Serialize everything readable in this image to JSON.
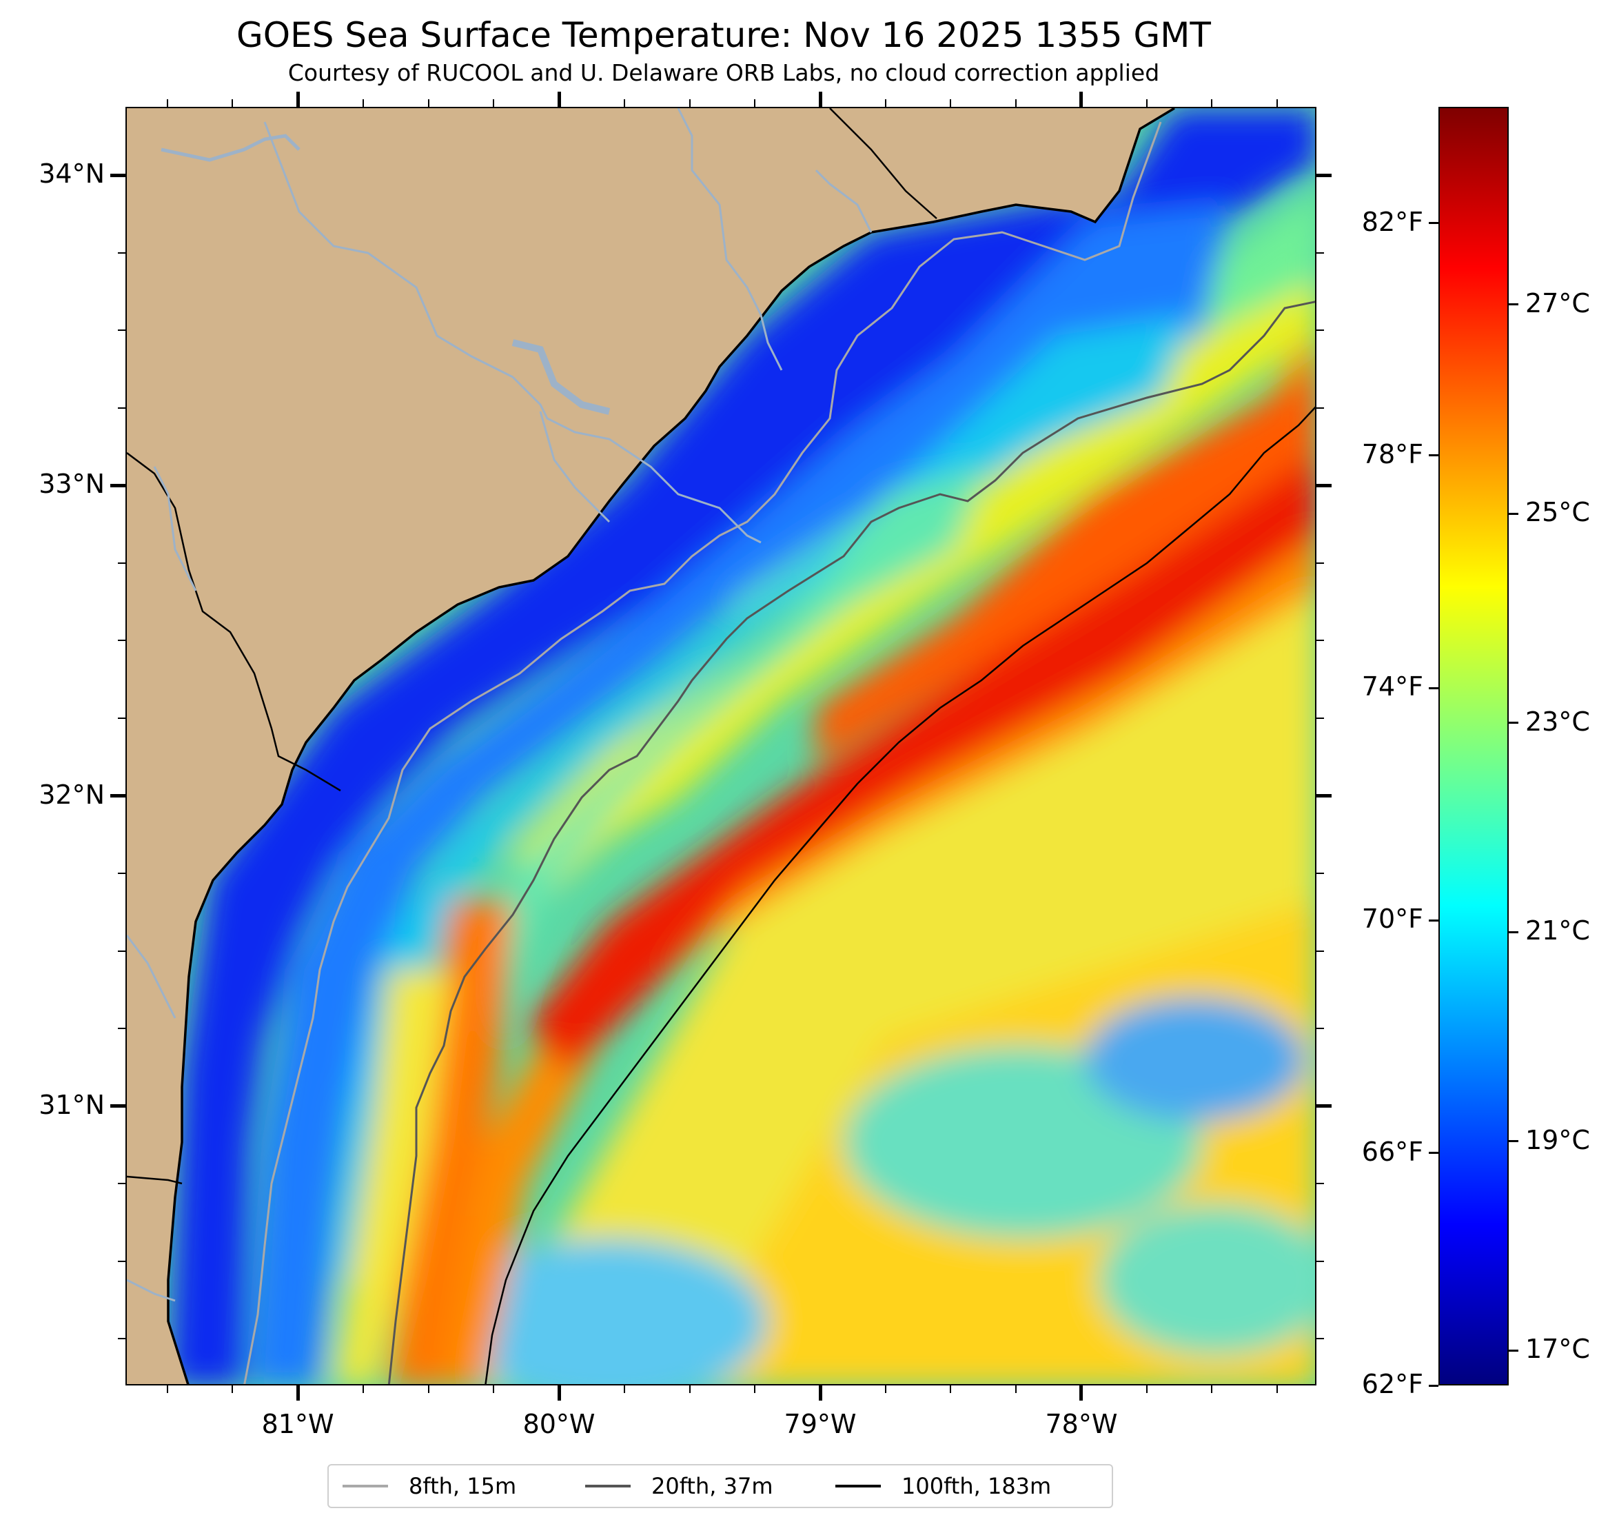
{
  "title": "GOES Sea Surface Temperature: Nov 16 2025 1355 GMT",
  "subtitle": "Courtesy of RUCOOL and U. Delaware ORB Labs, no cloud correction applied",
  "map": {
    "lat_range": [
      30.1,
      34.22
    ],
    "lon_range": [
      -81.66,
      -77.1
    ],
    "lat_labels": [
      {
        "value": 34,
        "label": "34°N"
      },
      {
        "value": 33,
        "label": "33°N"
      },
      {
        "value": 32,
        "label": "32°N"
      },
      {
        "value": 31,
        "label": "31°N"
      }
    ],
    "lon_labels": [
      {
        "value": -81,
        "label": "81°W"
      },
      {
        "value": -80,
        "label": "80°W"
      },
      {
        "value": -79,
        "label": "79°W"
      },
      {
        "value": -78,
        "label": "78°W"
      }
    ],
    "land_color": "#d2b48c",
    "river_color": "#9db2c8"
  },
  "colorbar": {
    "fahrenheit_labels": [
      {
        "value": 82,
        "label": "82°F"
      },
      {
        "value": 78,
        "label": "78°F"
      },
      {
        "value": 74,
        "label": "74°F"
      },
      {
        "value": 70,
        "label": "70°F"
      },
      {
        "value": 66,
        "label": "66°F"
      },
      {
        "value": 62,
        "label": "62°F"
      }
    ],
    "celsius_labels": [
      {
        "value": 27,
        "label": "27°C"
      },
      {
        "value": 25,
        "label": "25°C"
      },
      {
        "value": 23,
        "label": "23°C"
      },
      {
        "value": 21,
        "label": "21°C"
      },
      {
        "value": 19,
        "label": "19°C"
      },
      {
        "value": 17,
        "label": "17°C"
      }
    ],
    "range_f": [
      62,
      84
    ],
    "colormap": [
      "#00007f",
      "#0000ff",
      "#007fff",
      "#00ffff",
      "#7fff7f",
      "#ffff00",
      "#ff7f00",
      "#ff0000",
      "#7f0000"
    ]
  },
  "legend": [
    {
      "label": "8fth, 15m",
      "color": "#a9a9a9"
    },
    {
      "label": "20fth, 37m",
      "color": "#555555"
    },
    {
      "label": "100fth, 183m",
      "color": "#000000"
    }
  ]
}
